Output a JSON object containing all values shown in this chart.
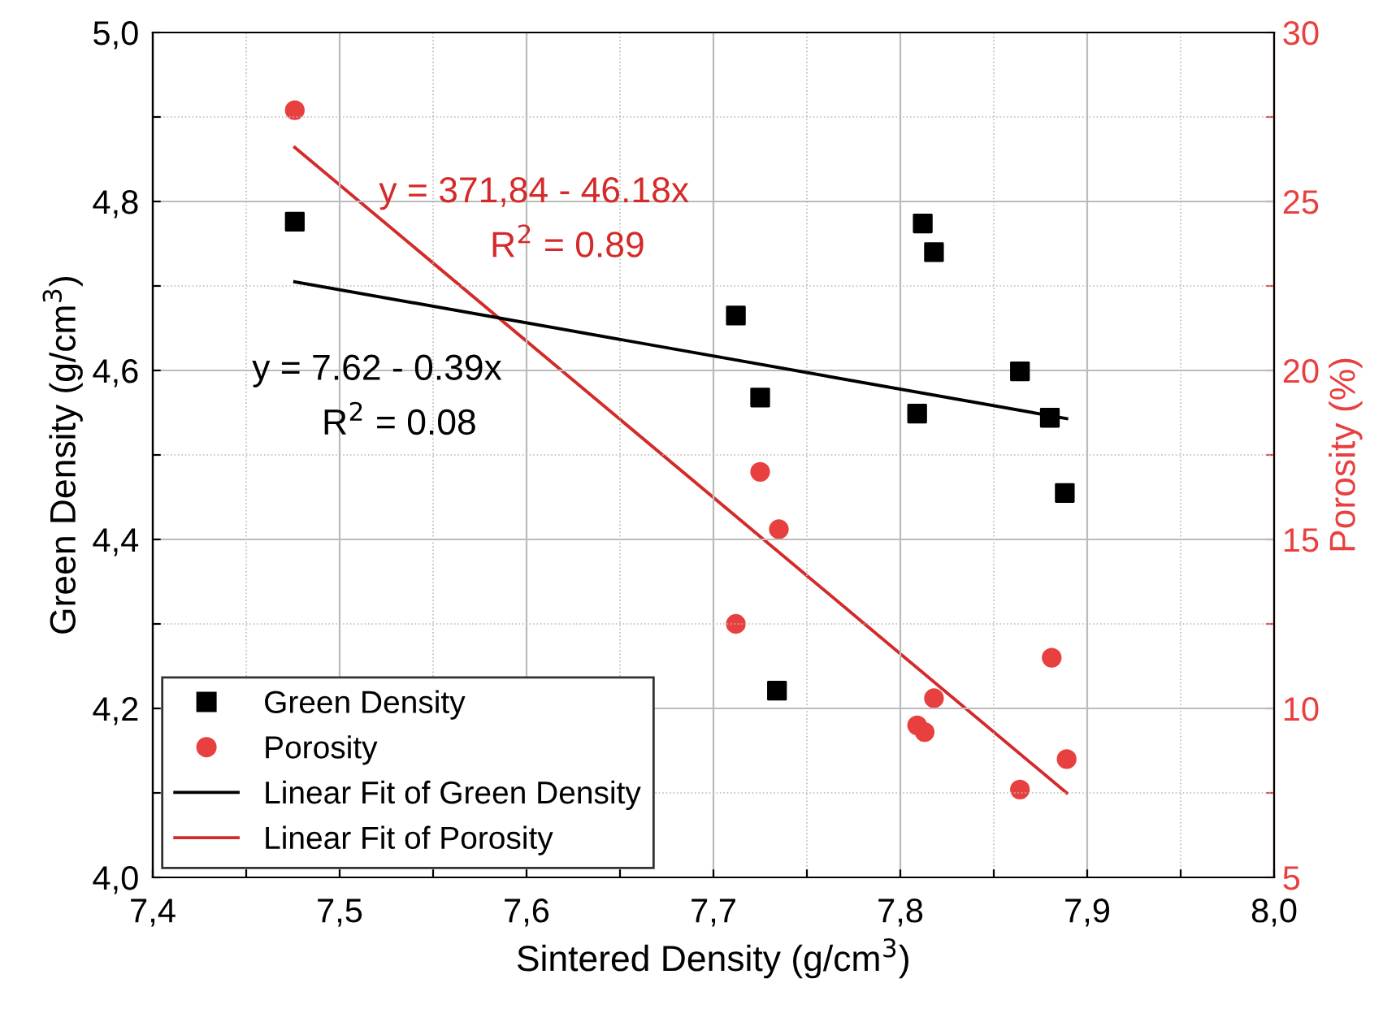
{
  "chart_data": {
    "type": "scatter",
    "xlabel": "Sintered Density (g/cm$^{3}$)",
    "ylabel": "Green Density (g/cm$^{3}$)",
    "y2label": "Porosity (%)",
    "xlim": [
      7.4,
      8.0
    ],
    "xticks": [
      {
        "value": 7.4,
        "label": "7,4"
      },
      {
        "value": 7.45,
        "label": null
      },
      {
        "value": 7.5,
        "label": "7,5"
      },
      {
        "value": 7.55,
        "label": null
      },
      {
        "value": 7.6,
        "label": "7,6"
      },
      {
        "value": 7.65,
        "label": null
      },
      {
        "value": 7.7,
        "label": "7,7"
      },
      {
        "value": 7.75,
        "label": null
      },
      {
        "value": 7.8,
        "label": "7,8"
      },
      {
        "value": 7.85,
        "label": null
      },
      {
        "value": 7.9,
        "label": "7,9"
      },
      {
        "value": 7.95,
        "label": null
      },
      {
        "value": 8.0,
        "label": "8,0"
      }
    ],
    "ylim": [
      4.0,
      5.0
    ],
    "yticks": [
      {
        "value": 4.0,
        "label": "4,0"
      },
      {
        "value": 4.1,
        "label": null
      },
      {
        "value": 4.2,
        "label": "4,2"
      },
      {
        "value": 4.3,
        "label": null
      },
      {
        "value": 4.4,
        "label": "4,4"
      },
      {
        "value": 4.5,
        "label": null
      },
      {
        "value": 4.6,
        "label": "4,6"
      },
      {
        "value": 4.7,
        "label": null
      },
      {
        "value": 4.8,
        "label": "4,8"
      },
      {
        "value": 4.9,
        "label": null
      },
      {
        "value": 5.0,
        "label": "5,0"
      }
    ],
    "y2lim": [
      5,
      30
    ],
    "y2ticks": [
      5,
      {
        "value": 7.5,
        "label": null
      },
      10,
      {
        "value": 12.5,
        "label": null
      },
      15,
      {
        "value": 17.5,
        "label": null
      },
      20,
      {
        "value": 22.5,
        "label": null
      },
      25,
      {
        "value": 27.5,
        "label": null
      },
      30
    ],
    "grid": true,
    "legend": "bottom left",
    "series": [
      {
        "name": "Green Density",
        "marker": "square",
        "color": "#000000",
        "x": [
          7.476,
          7.712,
          7.725,
          7.734,
          7.809,
          7.812,
          7.818,
          7.864,
          7.88,
          7.888
        ],
        "values": [
          4.776,
          4.665,
          4.568,
          4.221,
          4.549,
          4.774,
          4.74,
          4.599,
          4.544,
          4.455
        ]
      },
      {
        "name": "Porosity",
        "marker": "circle",
        "axis": "y2",
        "color": "#e8403f",
        "x": [
          7.476,
          7.712,
          7.725,
          7.735,
          7.809,
          7.813,
          7.818,
          7.864,
          7.881,
          7.889
        ],
        "values": [
          27.7,
          12.5,
          17.0,
          15.3,
          9.5,
          9.3,
          10.3,
          7.6,
          11.5,
          8.5
        ]
      },
      {
        "name": "Linear Fit of Green Density",
        "type": "line",
        "marker": "none",
        "color": "#000000",
        "x": [
          7.476,
          7.889
        ],
        "values": [
          4.705,
          4.543
        ]
      },
      {
        "name": "Linear Fit of Porosity",
        "type": "line",
        "marker": "none",
        "axis": "y2",
        "color": "#d42a2a",
        "x": [
          7.476,
          7.889
        ],
        "values": [
          26.6,
          7.5
        ]
      }
    ],
    "annotations": [
      "y = 371,84 - 46.18x",
      "R$^{2}$ = 0.89",
      "y = 7.62 - 0.39x",
      "R$^{2}$ = 0.08"
    ]
  }
}
